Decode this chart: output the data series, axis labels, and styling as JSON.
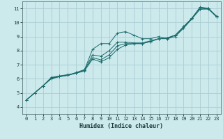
{
  "xlabel": "Humidex (Indice chaleur)",
  "bg_color": "#cce9ec",
  "grid_color": "#aacdd4",
  "line_color": "#1a6b6b",
  "xlim": [
    -0.5,
    23.5
  ],
  "ylim": [
    3.5,
    11.5
  ],
  "xticks": [
    0,
    1,
    2,
    3,
    4,
    5,
    6,
    7,
    8,
    9,
    10,
    11,
    12,
    13,
    14,
    15,
    16,
    17,
    18,
    19,
    20,
    21,
    22,
    23
  ],
  "yticks": [
    4,
    5,
    6,
    7,
    8,
    9,
    10,
    11
  ],
  "lines": [
    {
      "x": [
        0,
        1,
        2,
        3,
        4,
        5,
        6,
        7,
        8,
        9,
        10,
        11,
        12,
        13,
        14,
        15,
        16,
        17,
        18,
        19,
        20,
        21,
        22,
        23
      ],
      "y": [
        4.5,
        5.0,
        5.5,
        6.1,
        6.2,
        6.3,
        6.4,
        6.6,
        8.1,
        8.5,
        8.5,
        9.25,
        9.35,
        9.1,
        8.85,
        8.85,
        9.0,
        8.85,
        9.0,
        9.6,
        10.3,
        11.1,
        11.0,
        10.45
      ]
    },
    {
      "x": [
        0,
        1,
        2,
        3,
        4,
        5,
        6,
        7,
        8,
        9,
        10,
        11,
        12,
        13,
        14,
        15,
        16,
        17,
        18,
        19,
        20,
        21,
        22,
        23
      ],
      "y": [
        4.5,
        5.0,
        5.5,
        6.05,
        6.2,
        6.25,
        6.4,
        6.6,
        7.7,
        7.6,
        8.0,
        8.6,
        8.6,
        8.55,
        8.55,
        8.7,
        8.85,
        8.9,
        9.1,
        9.6,
        10.25,
        10.95,
        11.0,
        10.4
      ]
    },
    {
      "x": [
        0,
        1,
        2,
        3,
        4,
        5,
        6,
        7,
        8,
        9,
        10,
        11,
        12,
        13,
        14,
        15,
        16,
        17,
        18,
        19,
        20,
        21,
        22,
        23
      ],
      "y": [
        4.5,
        5.0,
        5.5,
        6.05,
        6.15,
        6.25,
        6.45,
        6.65,
        7.5,
        7.35,
        7.7,
        8.35,
        8.5,
        8.5,
        8.5,
        8.65,
        8.85,
        8.9,
        9.1,
        9.7,
        10.3,
        11.05,
        11.0,
        10.4
      ]
    },
    {
      "x": [
        0,
        1,
        2,
        3,
        4,
        5,
        6,
        7,
        8,
        9,
        10,
        11,
        12,
        13,
        14,
        15,
        16,
        17,
        18,
        19,
        20,
        21,
        22,
        23
      ],
      "y": [
        4.5,
        5.0,
        5.5,
        6.0,
        6.15,
        6.25,
        6.4,
        6.55,
        7.4,
        7.2,
        7.5,
        8.1,
        8.4,
        8.5,
        8.5,
        8.65,
        8.85,
        8.85,
        9.1,
        9.7,
        10.3,
        10.95,
        10.95,
        10.4
      ]
    }
  ]
}
